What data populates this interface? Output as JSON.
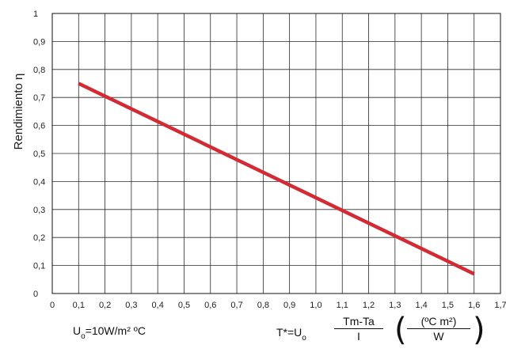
{
  "chart_data": {
    "type": "line",
    "ylabel": "Rendimiento η",
    "xlim": [
      0,
      1.7
    ],
    "ylim": [
      0,
      1
    ],
    "xticks": [
      "0",
      "0,1",
      "0,2",
      "0,3",
      "0,4",
      "0,5",
      "0,6",
      "0,7",
      "0,8",
      "0,9",
      "1,0",
      "1,1",
      "1,2",
      "1,3",
      "1,4",
      "1,5",
      "1,6",
      "1,7"
    ],
    "yticks": [
      "0",
      "0,1",
      "0,2",
      "0,3",
      "0,4",
      "0,5",
      "0,6",
      "0,7",
      "0,8",
      "0,9",
      "1"
    ],
    "grid": true,
    "line_color": "#d42a33",
    "series": [
      {
        "x": [
          0.1,
          1.6
        ],
        "y": [
          0.75,
          0.07
        ]
      }
    ]
  },
  "annotations": {
    "u0_left": {
      "u": "U",
      "sub": "o",
      "rest": "=10W/m² ºC"
    },
    "formula": {
      "prefix": "T*=U",
      "sub": "o",
      "frac_num": "Tm-Ta",
      "frac_den": "I",
      "paren_open": "(",
      "paren_close": ")",
      "unit_num": "(ºC m²)",
      "unit_den": "W"
    }
  }
}
